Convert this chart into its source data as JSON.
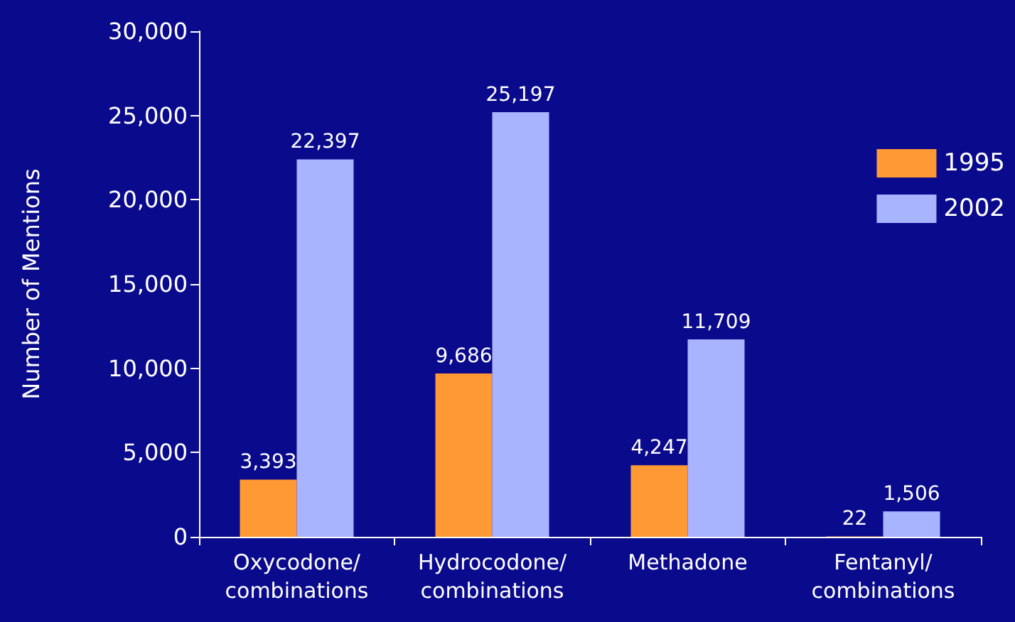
{
  "chart_data": {
    "type": "bar",
    "ylabel": "Number of Mentions",
    "categories": [
      "Oxycodone/\ncombinations",
      "Hydrocodone/\ncombinations",
      "Methadone",
      "Fentanyl/\ncombinations"
    ],
    "series": [
      {
        "name": "1995",
        "color": "#ff9933",
        "values": [
          3393,
          9686,
          4247,
          22
        ],
        "value_labels": [
          "3,393",
          "9,686",
          "4,247",
          "22"
        ]
      },
      {
        "name": "2002",
        "color": "#a9b4ff",
        "values": [
          22397,
          25197,
          11709,
          1506
        ],
        "value_labels": [
          "22,397",
          "25,197",
          "11,709",
          "1,506"
        ]
      }
    ],
    "ylim": [
      0,
      30000
    ],
    "yticks": [
      0,
      {
        "value": 5000,
        "label": "5,000"
      },
      {
        "value": 10000,
        "label": "10,000"
      },
      {
        "value": 15000,
        "label": "15,000"
      },
      {
        "value": 20000,
        "label": "20,000"
      },
      {
        "value": 25000,
        "label": "25,000"
      },
      {
        "value": 30000,
        "label": "30,000"
      }
    ],
    "grid": false,
    "legend": "top right"
  }
}
